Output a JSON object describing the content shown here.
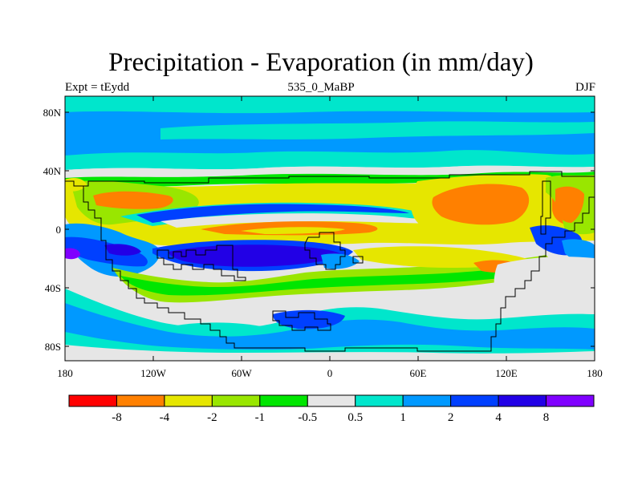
{
  "title": "Precipitation - Evaporation (in mm/day)",
  "subtitle_left": "Expt = tEydd",
  "subtitle_center": "535_0_MaBP",
  "subtitle_right": "DJF",
  "y_ticks": [
    "80N",
    "40N",
    "0",
    "40S",
    "80S"
  ],
  "x_ticks": [
    "180",
    "120W",
    "60W",
    "0",
    "60E",
    "120E",
    "180"
  ],
  "colorbar": {
    "colors": [
      "#ff0000",
      "#ff8000",
      "#e6e600",
      "#99e600",
      "#00e600",
      "#e6e6e6",
      "#00e6cc",
      "#0099ff",
      "#0040ff",
      "#2200e6",
      "#8000ff"
    ],
    "labels": [
      "-8",
      "-4",
      "-2",
      "-1",
      "-0.5",
      "0.5",
      "1",
      "2",
      "4",
      "8"
    ]
  },
  "palette": {
    "background": "#e6e6e6",
    "red": "#ff0000",
    "orange": "#ff8000",
    "yellow": "#e6e600",
    "lime": "#99e600",
    "green": "#00e600",
    "cyan": "#00e6cc",
    "lightblue": "#0099ff",
    "blue": "#0040ff",
    "darkblue": "#2200e6",
    "violet": "#8000ff"
  }
}
